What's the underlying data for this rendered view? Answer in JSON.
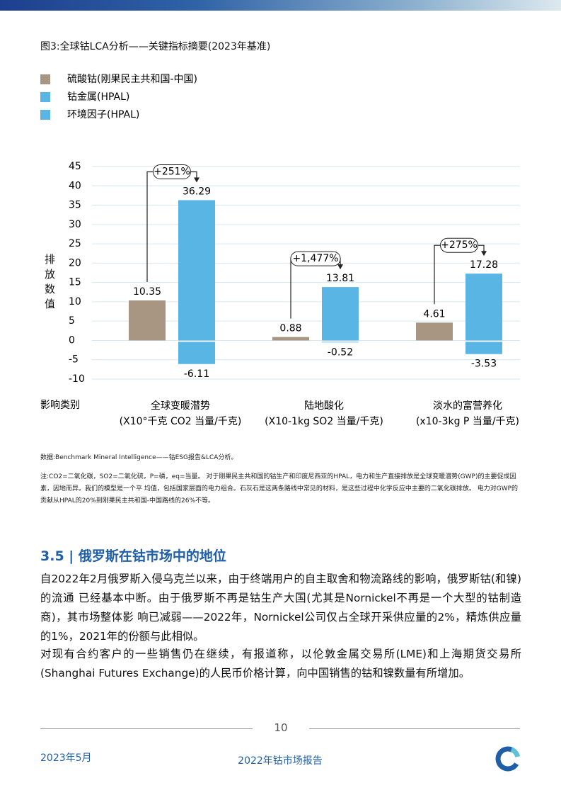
{
  "figure_title": "图3:全球钴LCA分析——关键指标摘要(2023年基准)",
  "chart_data": {
    "type": "bar",
    "y_label": "排放数值",
    "x_label": "影响类别",
    "categories": [
      "全球变暖潜势",
      "陆地酸化",
      "淡水的富营养化"
    ],
    "category_units": [
      "(X10°千克 CO2 当量/千克)",
      "(X10-1kg SO2 当量/千克)",
      "(x10-3kg P 当量/千克)"
    ],
    "series": [
      {
        "name": "硫酸钴(刚果民主共和国-中国)",
        "color": "#a89682",
        "values": [
          10.35,
          0.88,
          4.61
        ]
      },
      {
        "name": "钴金属(HPAL)",
        "color": "#58b5e4",
        "values": [
          36.29,
          13.81,
          17.28
        ]
      },
      {
        "name": "环境因子(HPAL)",
        "color": "#58b5e4",
        "values": [
          -6.11,
          -0.52,
          -3.53
        ]
      }
    ],
    "annotations": [
      "+251%",
      "+1,477%",
      "+275%"
    ],
    "ylim": [
      -10,
      45
    ],
    "yticks": [
      -10,
      -5,
      0,
      5,
      10,
      15,
      20,
      25,
      30,
      35,
      40,
      45
    ],
    "grid": true
  },
  "source": "数据:Benchmark Mineral Intelligence——钴ESG报告&LCA分析。",
  "note": "注:CO2=二氧化碳，SO2=二氧化硫，P=磷，eq=当量。 对于刚果民主共和国的钴生产和印度尼西亚的HPAL，电力和生产直接排放是全球变暖潜势(GWP)的主要促成因素，因地而异。我们的模型是一个平 均值，包括国家层面的电力组合。石灰石是这两条路线中常见的材料，是这些过程中化学反应中主要的二氧化碳排放。 电力对GWP的贡献从HPAL的20%到刚果民主共和国-中国路线的26%不等。",
  "section": {
    "heading": "3.5 | 俄罗斯在钴市场中的地位",
    "paragraphs": [
      "自2022年2月俄罗斯入侵乌克兰以来，由于终端用户的自主取舍和物流路线的影响，俄罗斯钴(和镍)的流通 已经基本中断。由于俄罗斯不再是钴生产大国(尤其是Nornickel不再是一个大型的钴制造商)，其市场整体影 响已减弱——2022年，Nornickel公司仅占全球开采供应量的2%，精炼供应量的1%，2021年的份额与此相似。",
      "对现有合约客户的一些销售仍在继续，有报道称，以伦敦金属交易所(LME)和上海期货交易所(Shanghai Futures Exchange)的人民币价格计算，向中国销售的钴和镍数量有所增加。"
    ]
  },
  "footer": {
    "page_number": "10",
    "date": "2023年5月",
    "report": "2022年钴市场报告"
  }
}
